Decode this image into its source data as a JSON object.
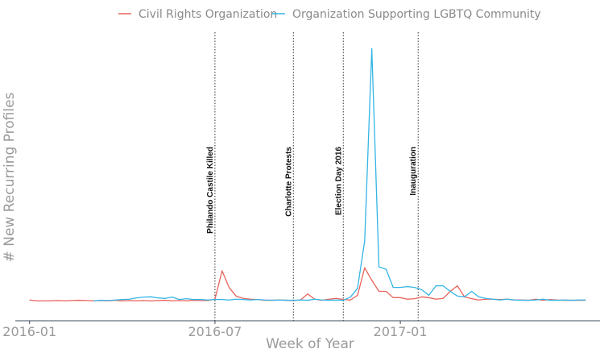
{
  "chart_data": {
    "type": "line",
    "title": "",
    "xlabel": "Week of Year",
    "ylabel": "# New Recurring Profiles",
    "x_ticks": [
      {
        "week": 0,
        "label": "2016-01"
      },
      {
        "week": 26,
        "label": "2016-07"
      },
      {
        "week": 52,
        "label": "2017-01"
      }
    ],
    "x_range": [
      -2,
      80
    ],
    "y_range": [
      0,
      100
    ],
    "legend": "top",
    "series": [
      {
        "name": "Civil Rights Organization",
        "color": "#e8625a",
        "points": [
          [
            0,
            3.3
          ],
          [
            1,
            3.0
          ],
          [
            2,
            3.0
          ],
          [
            3,
            3.0
          ],
          [
            4,
            3.1
          ],
          [
            5,
            3.0
          ],
          [
            6,
            3.1
          ],
          [
            7,
            3.2
          ],
          [
            8,
            3.1
          ],
          [
            9,
            3.0
          ],
          [
            10,
            3.1
          ],
          [
            11,
            3.0
          ],
          [
            12,
            3.2
          ],
          [
            13,
            3.0
          ],
          [
            14,
            3.1
          ],
          [
            15,
            3.0
          ],
          [
            16,
            3.1
          ],
          [
            17,
            3.0
          ],
          [
            18,
            3.1
          ],
          [
            19,
            3.2
          ],
          [
            20,
            3.0
          ],
          [
            21,
            3.1
          ],
          [
            22,
            3.0
          ],
          [
            23,
            3.2
          ],
          [
            24,
            3.1
          ],
          [
            25,
            3.1
          ],
          [
            26,
            3.6
          ],
          [
            27,
            14.4
          ],
          [
            28,
            8.0
          ],
          [
            29,
            4.7
          ],
          [
            30,
            3.9
          ],
          [
            31,
            3.6
          ],
          [
            32,
            3.5
          ],
          [
            33,
            3.2
          ],
          [
            34,
            3.2
          ],
          [
            35,
            3.3
          ],
          [
            36,
            3.2
          ],
          [
            37,
            3.1
          ],
          [
            38,
            3.3
          ],
          [
            39,
            5.6
          ],
          [
            40,
            3.6
          ],
          [
            41,
            3.2
          ],
          [
            42,
            3.6
          ],
          [
            43,
            3.9
          ],
          [
            44,
            3.5
          ],
          [
            45,
            3.3
          ],
          [
            46,
            5.1
          ],
          [
            47,
            15.6
          ],
          [
            48,
            10.8
          ],
          [
            49,
            6.6
          ],
          [
            50,
            6.6
          ],
          [
            51,
            4.2
          ],
          [
            52,
            4.2
          ],
          [
            53,
            3.6
          ],
          [
            54,
            3.8
          ],
          [
            55,
            4.5
          ],
          [
            56,
            4.2
          ],
          [
            57,
            3.6
          ],
          [
            58,
            3.9
          ],
          [
            59,
            6.6
          ],
          [
            60,
            8.7
          ],
          [
            61,
            4.5
          ],
          [
            62,
            3.8
          ],
          [
            63,
            3.3
          ],
          [
            64,
            3.6
          ],
          [
            65,
            3.6
          ],
          [
            66,
            3.5
          ],
          [
            67,
            3.6
          ],
          [
            68,
            3.3
          ],
          [
            69,
            3.3
          ],
          [
            70,
            3.2
          ],
          [
            71,
            3.6
          ],
          [
            72,
            3.2
          ],
          [
            73,
            3.5
          ],
          [
            74,
            3.3
          ],
          [
            75,
            3.2
          ],
          [
            76,
            3.2
          ],
          [
            77,
            3.2
          ],
          [
            78,
            3.2
          ]
        ]
      },
      {
        "name": "Organization Supporting LGBTQ Community",
        "color": "#33b5e5",
        "points": [
          [
            9,
            3.0
          ],
          [
            10,
            3.2
          ],
          [
            11,
            3.1
          ],
          [
            12,
            3.3
          ],
          [
            13,
            3.5
          ],
          [
            14,
            3.6
          ],
          [
            15,
            4.1
          ],
          [
            16,
            4.4
          ],
          [
            17,
            4.5
          ],
          [
            18,
            4.1
          ],
          [
            19,
            3.9
          ],
          [
            20,
            4.4
          ],
          [
            21,
            3.5
          ],
          [
            22,
            3.8
          ],
          [
            23,
            3.5
          ],
          [
            24,
            3.5
          ],
          [
            25,
            3.3
          ],
          [
            26,
            3.5
          ],
          [
            27,
            3.5
          ],
          [
            28,
            3.3
          ],
          [
            29,
            3.6
          ],
          [
            30,
            3.5
          ],
          [
            31,
            3.3
          ],
          [
            32,
            3.5
          ],
          [
            33,
            3.3
          ],
          [
            34,
            3.2
          ],
          [
            35,
            3.3
          ],
          [
            36,
            3.2
          ],
          [
            37,
            3.2
          ],
          [
            38,
            3.3
          ],
          [
            39,
            3.2
          ],
          [
            40,
            3.6
          ],
          [
            41,
            3.3
          ],
          [
            42,
            3.2
          ],
          [
            43,
            3.3
          ],
          [
            44,
            3.2
          ],
          [
            45,
            4.4
          ],
          [
            46,
            7.8
          ],
          [
            47,
            25.8
          ],
          [
            48,
            99.0
          ],
          [
            49,
            15.9
          ],
          [
            50,
            15.0
          ],
          [
            51,
            8.1
          ],
          [
            52,
            8.1
          ],
          [
            53,
            8.4
          ],
          [
            54,
            8.1
          ],
          [
            55,
            7.2
          ],
          [
            56,
            5.1
          ],
          [
            57,
            8.7
          ],
          [
            58,
            8.7
          ],
          [
            59,
            6.6
          ],
          [
            60,
            4.8
          ],
          [
            61,
            4.5
          ],
          [
            62,
            6.6
          ],
          [
            63,
            4.5
          ],
          [
            64,
            3.9
          ],
          [
            65,
            3.6
          ],
          [
            66,
            3.3
          ],
          [
            67,
            3.6
          ],
          [
            68,
            3.3
          ],
          [
            69,
            3.2
          ],
          [
            70,
            3.2
          ],
          [
            71,
            3.3
          ],
          [
            72,
            3.6
          ],
          [
            73,
            3.2
          ],
          [
            74,
            3.2
          ],
          [
            75,
            3.3
          ],
          [
            76,
            3.2
          ],
          [
            77,
            3.3
          ],
          [
            78,
            3.3
          ]
        ]
      }
    ],
    "events": [
      {
        "week": 26,
        "label": "Philando Castile Killed"
      },
      {
        "week": 37,
        "label": "Charlotte Protests"
      },
      {
        "week": 44,
        "label": "Election Day 2016"
      },
      {
        "week": 54.5,
        "label": "Inauguration"
      }
    ],
    "grid": false
  }
}
